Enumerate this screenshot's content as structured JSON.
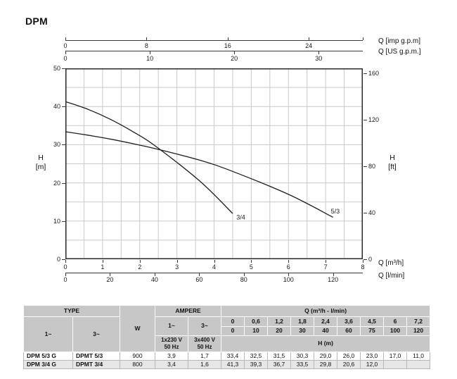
{
  "title": "DPM",
  "chart_data": {
    "type": "line",
    "title": "DPM",
    "xlim": [
      0,
      8
    ],
    "ylim": [
      0,
      50
    ],
    "grid": {
      "x_step": 0.5,
      "y_step": 5,
      "color": "#c9c9c9"
    },
    "curve_color": "#1f1f1f",
    "axes": {
      "top1": {
        "label": "Q [imp g.p.m]",
        "ticks": [
          0,
          8,
          16,
          24
        ],
        "to_m3h": 0.27276
      },
      "top2": {
        "label": "Q [US g.p.m.]",
        "ticks": [
          0,
          10,
          20,
          30
        ],
        "to_m3h": 0.22712
      },
      "bottom1": {
        "label": "Q [m³/h]",
        "ticks": [
          0,
          1,
          2,
          3,
          4,
          5,
          6,
          7,
          8
        ],
        "to_m3h": 1
      },
      "bottom2": {
        "label": "Q [l/min]",
        "ticks": [
          0,
          20,
          40,
          60,
          80,
          100,
          120
        ],
        "to_m3h": 0.06
      },
      "left": {
        "label": [
          "H",
          "[m]"
        ],
        "ticks": [
          0,
          10,
          20,
          30,
          40,
          50
        ],
        "to_m": 1
      },
      "right": {
        "label": [
          "H",
          "[ft]"
        ],
        "ticks": [
          0,
          40,
          80,
          120,
          160
        ],
        "to_m": 0.3048
      }
    },
    "series": [
      {
        "name": "5/3",
        "q_m3h": [
          0,
          0.6,
          1.2,
          1.8,
          2.4,
          3.6,
          4.5,
          6,
          7.2
        ],
        "h_m": [
          33.4,
          32.5,
          31.5,
          30.3,
          29.0,
          26.0,
          23.0,
          17.0,
          11.0
        ],
        "label_pos": {
          "q": 7.26,
          "h": 12.0
        }
      },
      {
        "name": "3/4",
        "q_m3h": [
          0,
          0.6,
          1.2,
          1.8,
          2.4,
          3.6,
          4.5
        ],
        "h_m": [
          41.3,
          39.3,
          36.7,
          33.5,
          29.8,
          20.6,
          12.0
        ],
        "label_pos": {
          "q": 4.72,
          "h": 10.4
        }
      }
    ]
  },
  "table": {
    "type_header": "TYPE",
    "type_sub": [
      "1~",
      "3~"
    ],
    "w_header": "W",
    "ampere_header": "AMPERE",
    "ampere_sub": [
      "1~",
      "3~"
    ],
    "ampere_volt": [
      [
        "1x230 V",
        "50 Hz"
      ],
      [
        "3x400 V",
        "50 Hz"
      ]
    ],
    "q_header": "Q (m³/h - l/min)",
    "q_m3h": [
      "0",
      "0,6",
      "1,2",
      "1,8",
      "2,4",
      "3,6",
      "4,5",
      "6",
      "7,2"
    ],
    "q_lmin": [
      "0",
      "10",
      "20",
      "30",
      "40",
      "60",
      "75",
      "100",
      "120"
    ],
    "h_row_header": "H (m)",
    "rows": [
      {
        "type1": "DPM 5/3 G",
        "type3": "DPMT 5/3",
        "w": "900",
        "amp1": "3,9",
        "amp3": "1,7",
        "h_values": [
          "33,4",
          "32,5",
          "31,5",
          "30,3",
          "29,0",
          "26,0",
          "23,0",
          "17,0",
          "11,0"
        ]
      },
      {
        "type1": "DPM 3/4 G",
        "type3": "DPMT 3/4",
        "w": "800",
        "amp1": "3,4",
        "amp3": "1,6",
        "h_values": [
          "41,3",
          "39,3",
          "36,7",
          "33,5",
          "29,8",
          "20,6",
          "12,0",
          "",
          ""
        ]
      }
    ]
  }
}
